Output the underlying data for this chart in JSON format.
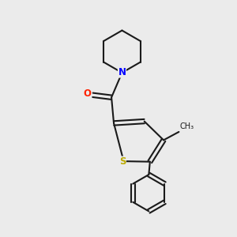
{
  "background_color": "#ebebeb",
  "bond_color": "#1a1a1a",
  "bond_width": 1.5,
  "N_color": "#0000ff",
  "O_color": "#ff2200",
  "S_color": "#bbaa00",
  "font_size_atom": 8.5,
  "xlim": [
    0,
    10
  ],
  "ylim": [
    0,
    10
  ]
}
